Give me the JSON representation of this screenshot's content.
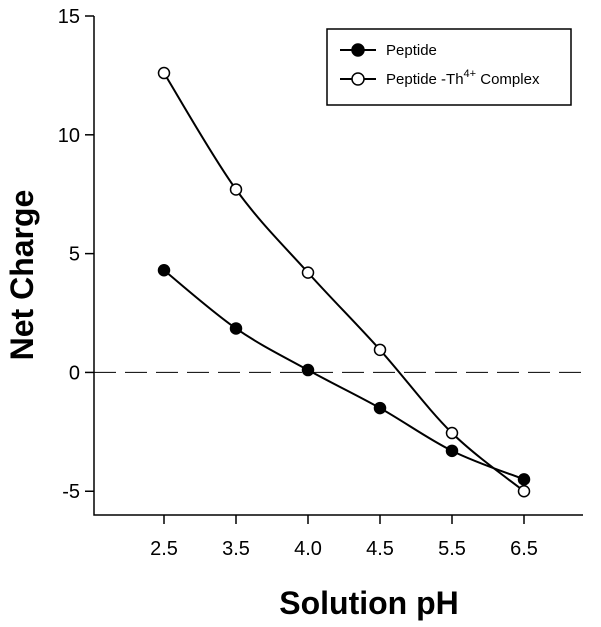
{
  "chart_data": {
    "type": "line",
    "xlabel": "Solution pH",
    "ylabel": "Net Charge",
    "categories": [
      "2.5",
      "3.5",
      "4.0",
      "4.5",
      "5.5",
      "6.5"
    ],
    "y_ticks": [
      "-5",
      "0",
      "5",
      "10",
      "15"
    ],
    "ylim": [
      -6,
      15
    ],
    "reference_line": {
      "y": 0,
      "style": "dashed"
    },
    "legend": {
      "position": "top-right"
    },
    "series": [
      {
        "name": "Peptide",
        "marker": "filled-circle",
        "values": [
          4.3,
          1.85,
          0.1,
          -1.5,
          -3.3,
          -4.5
        ]
      },
      {
        "name": "Peptide -Th",
        "name_superscript": "4+",
        "name_suffix": " Complex",
        "marker": "open-circle",
        "values": [
          12.6,
          7.7,
          4.2,
          0.95,
          -2.55,
          -5.0
        ]
      }
    ]
  }
}
